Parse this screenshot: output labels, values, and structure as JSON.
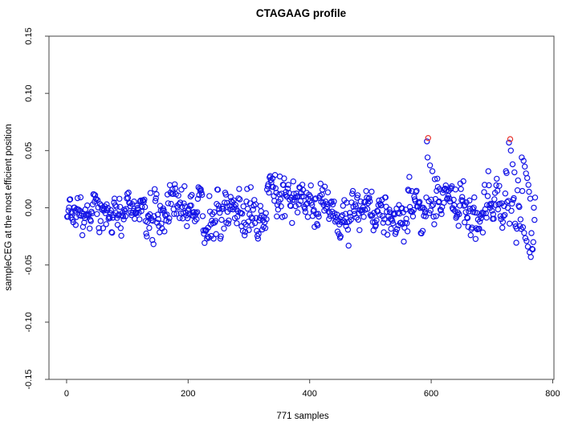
{
  "chart_data": {
    "type": "scatter",
    "title": "CTAGAAG profile",
    "xlabel": "771 samples",
    "ylabel": "sampleCEG at the most efficient position",
    "n_samples": 771,
    "xlim": [
      -29,
      802
    ],
    "ylim": [
      -0.15,
      0.15
    ],
    "x_ticks": [
      {
        "v": 0,
        "label": "0"
      },
      {
        "v": 200,
        "label": "200"
      },
      {
        "v": 400,
        "label": "400"
      },
      {
        "v": 600,
        "label": "600"
      },
      {
        "v": 800,
        "label": "800"
      }
    ],
    "y_ticks": [
      {
        "v": 0.15,
        "label": "0.15"
      },
      {
        "v": 0.1,
        "label": "0.10"
      },
      {
        "v": 0.05,
        "label": "0.05"
      },
      {
        "v": 0.0,
        "label": "0.00"
      },
      {
        "v": -0.05,
        "label": "-0.05"
      },
      {
        "v": -0.1,
        "label": "-0.10"
      },
      {
        "v": -0.15,
        "label": "-0.15"
      }
    ],
    "grid": false,
    "legend": null,
    "marker": {
      "shape": "open-circle",
      "radius": 3.1,
      "stroke_width": 1.2
    },
    "colors": {
      "points": "#1414e6",
      "outliers": "#e8322a",
      "axis": "#444444",
      "text": "#000000",
      "background": "#ffffff"
    },
    "outlier_points_red": [
      [
        595,
        0.061
      ],
      [
        730,
        0.06
      ]
    ],
    "feature_points_blue": [
      [
        593,
        0.058
      ],
      [
        594,
        0.044
      ],
      [
        598,
        0.037
      ],
      [
        602,
        0.032
      ],
      [
        606,
        0.025
      ],
      [
        728,
        0.057
      ],
      [
        731,
        0.05
      ],
      [
        734,
        0.038
      ],
      [
        737,
        0.031
      ],
      [
        749,
        0.044
      ],
      [
        752,
        0.041
      ],
      [
        754,
        0.036
      ],
      [
        756,
        0.03
      ],
      [
        758,
        0.026
      ],
      [
        760,
        0.02
      ],
      [
        761,
        0.014
      ],
      [
        763,
        0.008
      ],
      [
        751,
        -0.017
      ],
      [
        753,
        -0.022
      ],
      [
        757,
        -0.029
      ],
      [
        759,
        -0.034
      ],
      [
        762,
        -0.039
      ],
      [
        764,
        -0.043
      ],
      [
        766,
        -0.036
      ],
      [
        768,
        -0.03
      ]
    ],
    "noise_model": {
      "seed": 20,
      "ar": 0.5,
      "sd_scale": 0.87,
      "default_clamp": 0.028,
      "segments": [
        [
          1,
          60,
          -0.004,
          0.008
        ],
        [
          60,
          130,
          -0.002,
          0.009
        ],
        [
          130,
          165,
          -0.008,
          0.011
        ],
        [
          165,
          200,
          0.004,
          0.011
        ],
        [
          200,
          225,
          0.003,
          0.009
        ],
        [
          225,
          255,
          -0.012,
          0.011
        ],
        [
          255,
          310,
          -0.006,
          0.01
        ],
        [
          310,
          330,
          -0.013,
          0.01
        ],
        [
          330,
          365,
          0.012,
          0.011
        ],
        [
          365,
          400,
          0.009,
          0.008
        ],
        [
          400,
          440,
          0.004,
          0.009
        ],
        [
          440,
          465,
          -0.009,
          0.011
        ],
        [
          465,
          520,
          -0.001,
          0.01
        ],
        [
          520,
          560,
          -0.008,
          0.01
        ],
        [
          560,
          585,
          0.003,
          0.011
        ],
        [
          585,
          615,
          0.006,
          0.013
        ],
        [
          615,
          655,
          0.003,
          0.01
        ],
        [
          655,
          690,
          -0.008,
          0.012
        ],
        [
          690,
          715,
          0.004,
          0.011
        ],
        [
          715,
          745,
          -0.002,
          0.014,
          0.034
        ],
        [
          745,
          772,
          -0.004,
          0.02,
          0.046
        ]
      ]
    }
  }
}
